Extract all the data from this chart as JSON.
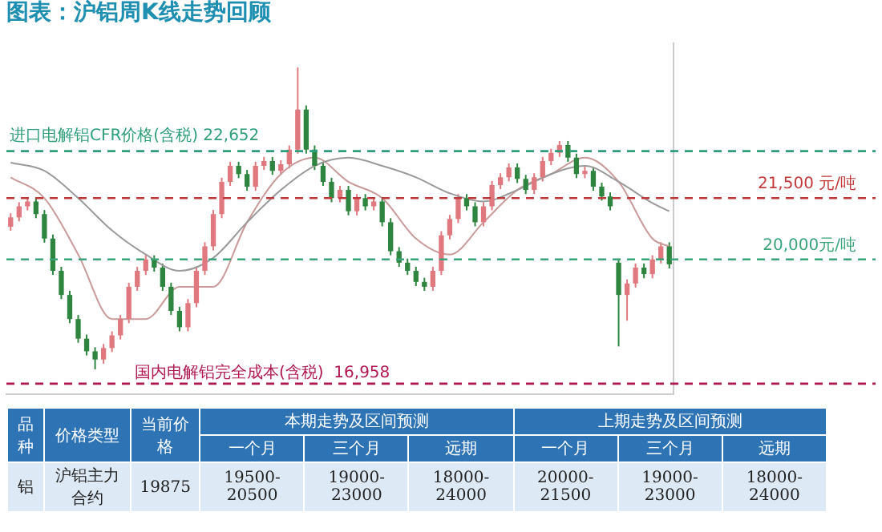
{
  "chart_data": [
    {
      "type": "candlestick",
      "title": "图表：沪铝周K线走势回顾",
      "tick_labels": false,
      "ylim": [
        16700,
        25300
      ],
      "categories": [
        null,
        null,
        null,
        null,
        null,
        null,
        null,
        null,
        null,
        null,
        null,
        null,
        null,
        null,
        null,
        null,
        null,
        null,
        null,
        null,
        null,
        null,
        null,
        null,
        null,
        null,
        null,
        null,
        null,
        null,
        null,
        null,
        null,
        null,
        null,
        null,
        null,
        null,
        null,
        null,
        null,
        null,
        null,
        null,
        null,
        null,
        null,
        null,
        null,
        null,
        null,
        null,
        null,
        null,
        null,
        null,
        null,
        null,
        null,
        null,
        null,
        null,
        null,
        null,
        null,
        null,
        null,
        null,
        null,
        null,
        null,
        null,
        null,
        null,
        null,
        null,
        null,
        null,
        null
      ],
      "ohlc": [
        [
          20800,
          21130,
          20700,
          21030
        ],
        [
          21030,
          21400,
          20930,
          21300
        ],
        [
          21300,
          21520,
          21200,
          21420
        ],
        [
          21420,
          21520,
          21010,
          21110
        ],
        [
          21110,
          21210,
          20410,
          20510
        ],
        [
          20510,
          20610,
          19620,
          19720
        ],
        [
          19720,
          19820,
          19030,
          19130
        ],
        [
          19130,
          19230,
          18440,
          18540
        ],
        [
          18540,
          18640,
          17960,
          18060
        ],
        [
          18060,
          18160,
          17650,
          17750
        ],
        [
          17750,
          17850,
          17310,
          17550
        ],
        [
          17550,
          17930,
          17450,
          17830
        ],
        [
          17830,
          18240,
          17730,
          18140
        ],
        [
          18140,
          18640,
          18040,
          18540
        ],
        [
          18540,
          19430,
          18440,
          19330
        ],
        [
          19330,
          19820,
          19230,
          19720
        ],
        [
          19720,
          20100,
          19620,
          20000
        ],
        [
          20000,
          20100,
          19700,
          19800
        ],
        [
          19800,
          19900,
          19230,
          19330
        ],
        [
          19330,
          19430,
          18640,
          18740
        ],
        [
          18740,
          18840,
          18240,
          18340
        ],
        [
          18340,
          19030,
          18240,
          18930
        ],
        [
          18930,
          19820,
          18830,
          19720
        ],
        [
          19720,
          20420,
          19620,
          20320
        ],
        [
          20320,
          21210,
          20220,
          21110
        ],
        [
          21110,
          22000,
          21010,
          21900
        ],
        [
          21900,
          22390,
          21800,
          22290
        ],
        [
          22290,
          22390,
          21990,
          22090
        ],
        [
          22090,
          22190,
          21680,
          21780
        ],
        [
          21780,
          22390,
          21680,
          22290
        ],
        [
          22290,
          22510,
          22190,
          22410
        ],
        [
          22410,
          22510,
          22070,
          22170
        ],
        [
          22170,
          22430,
          22070,
          22330
        ],
        [
          22330,
          22790,
          22230,
          22690
        ],
        [
          22690,
          24700,
          22590,
          23670
        ],
        [
          23670,
          23770,
          22590,
          22690
        ],
        [
          22690,
          22790,
          22190,
          22290
        ],
        [
          22290,
          22390,
          21800,
          21900
        ],
        [
          21900,
          22000,
          21400,
          21500
        ],
        [
          21500,
          21800,
          21400,
          21700
        ],
        [
          21700,
          21800,
          21080,
          21180
        ],
        [
          21180,
          21600,
          21080,
          21500
        ],
        [
          21500,
          21600,
          21200,
          21300
        ],
        [
          21300,
          21520,
          21200,
          21420
        ],
        [
          21420,
          21520,
          20810,
          20910
        ],
        [
          20910,
          21010,
          20100,
          20200
        ],
        [
          20200,
          20300,
          19820,
          19920
        ],
        [
          19920,
          20020,
          19620,
          19720
        ],
        [
          19720,
          19820,
          19350,
          19450
        ],
        [
          19450,
          19550,
          19230,
          19330
        ],
        [
          19330,
          19820,
          19230,
          19720
        ],
        [
          19720,
          20690,
          19620,
          20590
        ],
        [
          20590,
          21090,
          20490,
          20990
        ],
        [
          20990,
          21600,
          20890,
          21500
        ],
        [
          21500,
          21600,
          21200,
          21300
        ],
        [
          21300,
          21400,
          20810,
          20910
        ],
        [
          20910,
          21400,
          20810,
          21300
        ],
        [
          21300,
          21920,
          21200,
          21820
        ],
        [
          21820,
          22110,
          21720,
          22010
        ],
        [
          22010,
          22350,
          21910,
          22250
        ],
        [
          22250,
          22350,
          21870,
          21970
        ],
        [
          21970,
          22070,
          21600,
          21700
        ],
        [
          21700,
          22110,
          21600,
          22010
        ],
        [
          22010,
          22510,
          21910,
          22410
        ],
        [
          22410,
          22710,
          22310,
          22610
        ],
        [
          22610,
          22900,
          22510,
          22800
        ],
        [
          22800,
          22900,
          22390,
          22490
        ],
        [
          22490,
          22590,
          21990,
          22090
        ],
        [
          22090,
          22270,
          21990,
          22170
        ],
        [
          22170,
          22270,
          21680,
          21780
        ],
        [
          21780,
          21880,
          21440,
          21540
        ],
        [
          21540,
          21640,
          21200,
          21300
        ],
        [
          19920,
          20020,
          17870,
          19130
        ],
        [
          19130,
          19510,
          18500,
          19410
        ],
        [
          19410,
          19900,
          19310,
          19800
        ],
        [
          19800,
          19900,
          19540,
          19640
        ],
        [
          19640,
          20100,
          19540,
          20000
        ],
        [
          20000,
          20420,
          19900,
          20320
        ],
        [
          20320,
          20420,
          19780,
          19880
        ]
      ],
      "colors": [
        "#e0787f",
        "#e0787f",
        "#e0787f",
        "#2e8540",
        "#2e8540",
        "#2e8540",
        "#2e8540",
        "#2e8540",
        "#2e8540",
        "#2e8540",
        "#2e8540",
        "#e0787f",
        "#e0787f",
        "#e0787f",
        "#e0787f",
        "#e0787f",
        "#e0787f",
        "#2e8540",
        "#2e8540",
        "#2e8540",
        "#2e8540",
        "#e0787f",
        "#e0787f",
        "#e0787f",
        "#e0787f",
        "#e0787f",
        "#e0787f",
        "#2e8540",
        "#2e8540",
        "#e0787f",
        "#e0787f",
        "#2e8540",
        "#e0787f",
        "#e0787f",
        "#e0787f",
        "#2e8540",
        "#2e8540",
        "#2e8540",
        "#2e8540",
        "#e0787f",
        "#2e8540",
        "#e0787f",
        "#2e8540",
        "#e0787f",
        "#2e8540",
        "#2e8540",
        "#2e8540",
        "#2e8540",
        "#2e8540",
        "#2e8540",
        "#e0787f",
        "#e0787f",
        "#e0787f",
        "#e0787f",
        "#2e8540",
        "#2e8540",
        "#e0787f",
        "#e0787f",
        "#e0787f",
        "#e0787f",
        "#2e8540",
        "#2e8540",
        "#e0787f",
        "#e0787f",
        "#e0787f",
        "#e0787f",
        "#2e8540",
        "#2e8540",
        "#e0787f",
        "#2e8540",
        "#2e8540",
        "#2e8540",
        "#2e8540",
        "#e0787f",
        "#e0787f",
        "#2e8540",
        "#e0787f",
        "#e0787f",
        "#2e8540"
      ],
      "series": [
        {
          "type": "line",
          "color": "#9a9a9a",
          "values": [
            22370,
            null,
            null,
            null,
            22170,
            null,
            null,
            null,
            21500,
            null,
            null,
            null,
            20710,
            null,
            null,
            null,
            20120,
            null,
            null,
            null,
            19720,
            null,
            null,
            null,
            20040,
            null,
            null,
            null,
            20910,
            null,
            null,
            null,
            21700,
            null,
            null,
            null,
            22290,
            null,
            null,
            null,
            22490,
            null,
            null,
            null,
            22290,
            null,
            null,
            null,
            22010,
            null,
            null,
            null,
            21620,
            null,
            null,
            null,
            21420,
            null,
            null,
            null,
            21700,
            null,
            null,
            null,
            22090,
            null,
            null,
            null,
            22290,
            null,
            null,
            null,
            21900,
            null,
            null,
            null,
            21380,
            null,
            21180
          ]
        },
        {
          "type": "line",
          "color": "#c99a9a",
          "values": [
            22010,
            null,
            null,
            null,
            21500,
            null,
            null,
            null,
            20120,
            null,
            null,
            null,
            18540,
            null,
            null,
            null,
            18540,
            null,
            null,
            null,
            19330,
            null,
            null,
            null,
            19330,
            null,
            null,
            null,
            20910,
            null,
            null,
            null,
            22090,
            null,
            null,
            null,
            22490,
            null,
            null,
            null,
            21900,
            null,
            null,
            null,
            21500,
            null,
            null,
            null,
            20510,
            null,
            null,
            null,
            20120,
            null,
            null,
            null,
            20910,
            null,
            null,
            null,
            21700,
            null,
            null,
            null,
            22090,
            null,
            null,
            null,
            22490,
            null,
            null,
            null,
            21900,
            null,
            null,
            null,
            20510,
            null,
            20320
          ]
        }
      ],
      "ref_lines": [
        {
          "axis": "y",
          "value": 22652,
          "label": "进口电解铝CFR价格(含税) 22,652",
          "color": "#2f9e7a",
          "line_style": "dashed"
        },
        {
          "axis": "y",
          "value": 21500,
          "label": "21,500 元/吨",
          "color": "#c0393b",
          "line_style": "dashed"
        },
        {
          "axis": "y",
          "value": 20000,
          "label": "20,000元/吨",
          "color": "#3aa37a",
          "line_style": "dashed"
        },
        {
          "axis": "y",
          "value": 16958,
          "label": "国内电解铝完全成本(含税)  16,958",
          "color": "#b0174f",
          "line_style": "dashed"
        }
      ]
    },
    {
      "type": "other",
      "annotations": [
        "品种",
        "价格类型",
        "当前价格",
        "本期走势及区间预测",
        "上期走势及区间预测",
        "一个月",
        "三个月",
        "远期",
        "一个月",
        "三个月",
        "远期",
        "铝",
        "沪铝主力合约",
        "19875",
        "19500-20500",
        "19000-23000",
        "18000-24000",
        "20000-21500",
        "19000-23000",
        "18000-24000"
      ]
    }
  ]
}
